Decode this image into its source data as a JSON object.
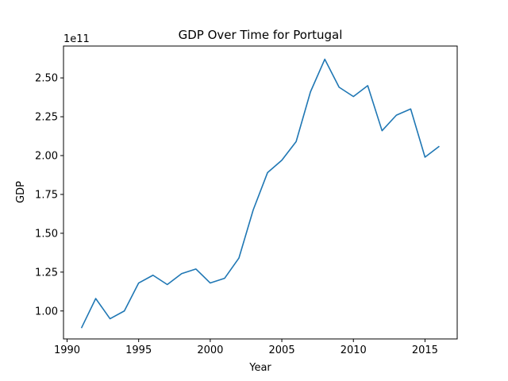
{
  "chart_data": {
    "type": "line",
    "title": "GDP Over Time for Portugal",
    "xlabel": "Year",
    "ylabel": "GDP",
    "offset_label": "1e11",
    "xlim": [
      1989.75,
      2017.25
    ],
    "ylim": [
      0.82,
      2.705
    ],
    "y_scale_note": "values shown in units of 1e11",
    "xticks": [
      1990,
      1995,
      2000,
      2005,
      2010,
      2015
    ],
    "yticks": [
      1.0,
      1.25,
      1.5,
      1.75,
      2.0,
      2.25,
      2.5
    ],
    "ytick_labels": [
      "1.00",
      "1.25",
      "1.50",
      "1.75",
      "2.00",
      "2.25",
      "2.50"
    ],
    "grid": false,
    "line_color": "#1f77b4",
    "x": [
      1991,
      1992,
      1993,
      1994,
      1995,
      1996,
      1997,
      1998,
      1999,
      2000,
      2001,
      2002,
      2003,
      2004,
      2005,
      2006,
      2007,
      2008,
      2009,
      2010,
      2011,
      2012,
      2013,
      2014,
      2015,
      2016
    ],
    "series": [
      {
        "values": [
          0.89,
          1.08,
          0.95,
          1.0,
          1.18,
          1.23,
          1.17,
          1.24,
          1.27,
          1.18,
          1.21,
          1.34,
          1.65,
          1.89,
          1.97,
          2.09,
          2.41,
          2.62,
          2.44,
          2.38,
          2.45,
          2.16,
          2.26,
          2.3,
          1.99,
          2.06
        ]
      }
    ]
  }
}
